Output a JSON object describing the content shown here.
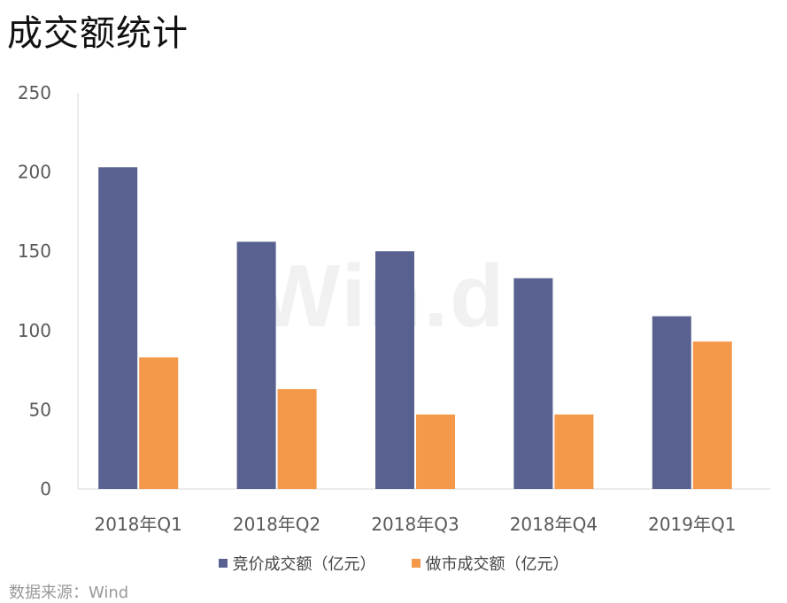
{
  "title": "成交额统计",
  "watermark": "Win.d",
  "source": "数据来源：Wind",
  "chart_data": {
    "type": "bar",
    "categories": [
      "2018年Q1",
      "2018年Q2",
      "2018年Q3",
      "2018年Q4",
      "2019年Q1"
    ],
    "series": [
      {
        "name": "竞价成交额（亿元）",
        "color": "#58618f",
        "values": [
          203,
          156,
          150,
          133,
          109
        ]
      },
      {
        "name": "做市成交额（亿元）",
        "color": "#f4984a",
        "values": [
          83,
          63,
          47,
          47,
          93
        ]
      }
    ],
    "yticks": [
      0,
      50,
      100,
      150,
      200,
      250
    ],
    "ylim": [
      0,
      250
    ],
    "grid": false,
    "legend": "bottom"
  }
}
